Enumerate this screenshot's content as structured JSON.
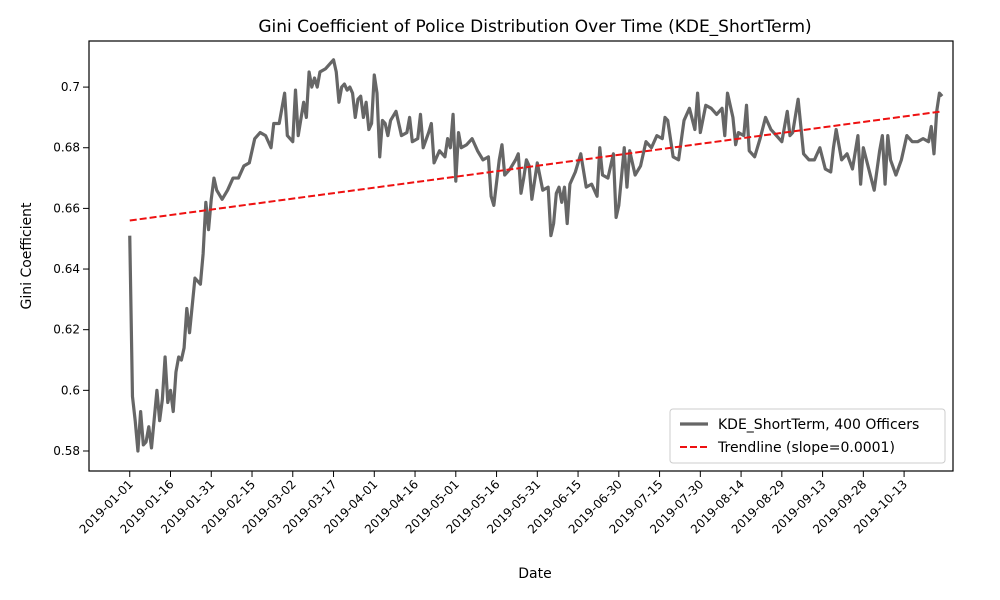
{
  "chart_data": {
    "type": "line",
    "title": "Gini Coefficient of Police Distribution Over Time (KDE_ShortTerm)",
    "xlabel": "Date",
    "ylabel": "Gini Coefficient",
    "xlim": [
      "2018-12-17",
      "2019-10-31"
    ],
    "ylim": [
      0.5734,
      0.7152
    ],
    "xticks": [
      "2019-01-01",
      "2019-01-16",
      "2019-01-31",
      "2019-02-15",
      "2019-03-02",
      "2019-03-17",
      "2019-04-01",
      "2019-04-16",
      "2019-05-01",
      "2019-05-16",
      "2019-05-31",
      "2019-06-15",
      "2019-06-30",
      "2019-07-15",
      "2019-07-30",
      "2019-08-14",
      "2019-08-29",
      "2019-09-13",
      "2019-09-28",
      "2019-10-13"
    ],
    "yticks": [
      0.58,
      0.6,
      0.62,
      0.64,
      0.66,
      0.68,
      0.7
    ],
    "legend": "lower right",
    "grid": false,
    "series": [
      {
        "name": "KDE_ShortTerm, 400 Officers",
        "color": "#666666",
        "linestyle": "solid",
        "x": [
          "2019-01-01",
          "2019-01-02",
          "2019-01-03",
          "2019-01-04",
          "2019-01-05",
          "2019-01-06",
          "2019-01-07",
          "2019-01-08",
          "2019-01-09",
          "2019-01-11",
          "2019-01-12",
          "2019-01-13",
          "2019-01-14",
          "2019-01-15",
          "2019-01-16",
          "2019-01-17",
          "2019-01-18",
          "2019-01-19",
          "2019-01-20",
          "2019-01-21",
          "2019-01-22",
          "2019-01-23",
          "2019-01-25",
          "2019-01-27",
          "2019-01-28",
          "2019-01-29",
          "2019-01-30",
          "2019-01-31",
          "2019-02-01",
          "2019-02-02",
          "2019-02-04",
          "2019-02-06",
          "2019-02-08",
          "2019-02-10",
          "2019-02-12",
          "2019-02-14",
          "2019-02-16",
          "2019-02-18",
          "2019-02-20",
          "2019-02-22",
          "2019-02-23",
          "2019-02-25",
          "2019-02-27",
          "2019-02-28",
          "2019-03-02",
          "2019-03-03",
          "2019-03-04",
          "2019-03-06",
          "2019-03-07",
          "2019-03-08",
          "2019-03-09",
          "2019-03-10",
          "2019-03-11",
          "2019-03-12",
          "2019-03-14",
          "2019-03-16",
          "2019-03-17",
          "2019-03-18",
          "2019-03-19",
          "2019-03-20",
          "2019-03-21",
          "2019-03-22",
          "2019-03-23",
          "2019-03-24",
          "2019-03-25",
          "2019-03-26",
          "2019-03-27",
          "2019-03-28",
          "2019-03-29",
          "2019-03-30",
          "2019-03-31",
          "2019-04-01",
          "2019-04-02",
          "2019-04-03",
          "2019-04-04",
          "2019-04-05",
          "2019-04-06",
          "2019-04-07",
          "2019-04-09",
          "2019-04-11",
          "2019-04-13",
          "2019-04-14",
          "2019-04-15",
          "2019-04-17",
          "2019-04-18",
          "2019-04-19",
          "2019-04-21",
          "2019-04-22",
          "2019-04-23",
          "2019-04-25",
          "2019-04-27",
          "2019-04-28",
          "2019-04-29",
          "2019-04-30",
          "2019-05-01",
          "2019-05-02",
          "2019-05-03",
          "2019-05-05",
          "2019-05-07",
          "2019-05-09",
          "2019-05-11",
          "2019-05-13",
          "2019-05-14",
          "2019-05-15",
          "2019-05-17",
          "2019-05-18",
          "2019-05-19",
          "2019-05-21",
          "2019-05-23",
          "2019-05-24",
          "2019-05-25",
          "2019-05-26",
          "2019-05-27",
          "2019-05-28",
          "2019-05-29",
          "2019-05-31",
          "2019-06-02",
          "2019-06-04",
          "2019-06-05",
          "2019-06-06",
          "2019-06-07",
          "2019-06-08",
          "2019-06-09",
          "2019-06-10",
          "2019-06-11",
          "2019-06-12",
          "2019-06-14",
          "2019-06-16",
          "2019-06-18",
          "2019-06-20",
          "2019-06-22",
          "2019-06-23",
          "2019-06-24",
          "2019-06-26",
          "2019-06-28",
          "2019-06-29",
          "2019-06-30",
          "2019-07-02",
          "2019-07-03",
          "2019-07-04",
          "2019-07-06",
          "2019-07-08",
          "2019-07-10",
          "2019-07-12",
          "2019-07-14",
          "2019-07-16",
          "2019-07-17",
          "2019-07-18",
          "2019-07-20",
          "2019-07-22",
          "2019-07-24",
          "2019-07-26",
          "2019-07-28",
          "2019-07-29",
          "2019-07-30",
          "2019-08-01",
          "2019-08-03",
          "2019-08-05",
          "2019-08-07",
          "2019-08-08",
          "2019-08-09",
          "2019-08-11",
          "2019-08-12",
          "2019-08-13",
          "2019-08-15",
          "2019-08-16",
          "2019-08-17",
          "2019-08-19",
          "2019-08-21",
          "2019-08-23",
          "2019-08-25",
          "2019-08-27",
          "2019-08-29",
          "2019-08-31",
          "2019-09-01",
          "2019-09-02",
          "2019-09-04",
          "2019-09-06",
          "2019-09-08",
          "2019-09-10",
          "2019-09-12",
          "2019-09-14",
          "2019-09-16",
          "2019-09-17",
          "2019-09-18",
          "2019-09-20",
          "2019-09-22",
          "2019-09-24",
          "2019-09-26",
          "2019-09-27",
          "2019-09-28",
          "2019-09-30",
          "2019-10-02",
          "2019-10-04",
          "2019-10-05",
          "2019-10-06",
          "2019-10-07",
          "2019-10-08",
          "2019-10-10",
          "2019-10-12",
          "2019-10-14",
          "2019-10-16",
          "2019-10-18",
          "2019-10-20",
          "2019-10-22",
          "2019-10-23",
          "2019-10-24",
          "2019-10-25",
          "2019-10-26",
          "2019-10-27"
        ],
        "values": [
          0.651,
          0.598,
          0.59,
          0.58,
          0.593,
          0.582,
          0.583,
          0.588,
          0.581,
          0.6,
          0.59,
          0.597,
          0.611,
          0.596,
          0.6,
          0.593,
          0.606,
          0.611,
          0.61,
          0.614,
          0.627,
          0.619,
          0.637,
          0.635,
          0.645,
          0.662,
          0.653,
          0.663,
          0.67,
          0.666,
          0.663,
          0.666,
          0.67,
          0.67,
          0.674,
          0.675,
          0.683,
          0.685,
          0.684,
          0.68,
          0.688,
          0.688,
          0.698,
          0.684,
          0.682,
          0.699,
          0.684,
          0.695,
          0.69,
          0.705,
          0.7,
          0.703,
          0.7,
          0.705,
          0.706,
          0.708,
          0.709,
          0.705,
          0.695,
          0.7,
          0.701,
          0.699,
          0.7,
          0.698,
          0.69,
          0.696,
          0.697,
          0.69,
          0.695,
          0.686,
          0.688,
          0.704,
          0.698,
          0.677,
          0.689,
          0.688,
          0.684,
          0.689,
          0.692,
          0.684,
          0.685,
          0.69,
          0.682,
          0.683,
          0.691,
          0.68,
          0.685,
          0.688,
          0.675,
          0.679,
          0.677,
          0.683,
          0.68,
          0.691,
          0.669,
          0.685,
          0.68,
          0.681,
          0.683,
          0.679,
          0.676,
          0.677,
          0.664,
          0.661,
          0.676,
          0.681,
          0.671,
          0.673,
          0.676,
          0.678,
          0.665,
          0.67,
          0.676,
          0.674,
          0.663,
          0.675,
          0.666,
          0.667,
          0.651,
          0.655,
          0.665,
          0.667,
          0.662,
          0.667,
          0.655,
          0.668,
          0.672,
          0.678,
          0.667,
          0.668,
          0.664,
          0.68,
          0.671,
          0.67,
          0.678,
          0.657,
          0.661,
          0.68,
          0.667,
          0.679,
          0.671,
          0.674,
          0.682,
          0.68,
          0.684,
          0.683,
          0.69,
          0.689,
          0.677,
          0.676,
          0.689,
          0.693,
          0.686,
          0.698,
          0.685,
          0.694,
          0.693,
          0.691,
          0.693,
          0.684,
          0.698,
          0.69,
          0.681,
          0.685,
          0.684,
          0.694,
          0.679,
          0.677,
          0.683,
          0.69,
          0.686,
          0.684,
          0.682,
          0.692,
          0.684,
          0.685,
          0.696,
          0.678,
          0.676,
          0.676,
          0.68,
          0.673,
          0.672,
          0.68,
          0.686,
          0.676,
          0.678,
          0.673,
          0.684,
          0.668,
          0.68,
          0.673,
          0.666,
          0.679,
          0.684,
          0.668,
          0.684,
          0.676,
          0.671,
          0.676,
          0.684,
          0.682,
          0.682,
          0.683,
          0.682,
          0.687,
          0.678,
          0.692,
          0.698,
          0.697
        ]
      },
      {
        "name": "Trendline (slope=0.0001)",
        "color": "#ee1111",
        "linestyle": "dashed",
        "x": [
          "2019-01-01",
          "2019-10-27"
        ],
        "values": [
          0.656,
          0.692
        ]
      }
    ]
  }
}
